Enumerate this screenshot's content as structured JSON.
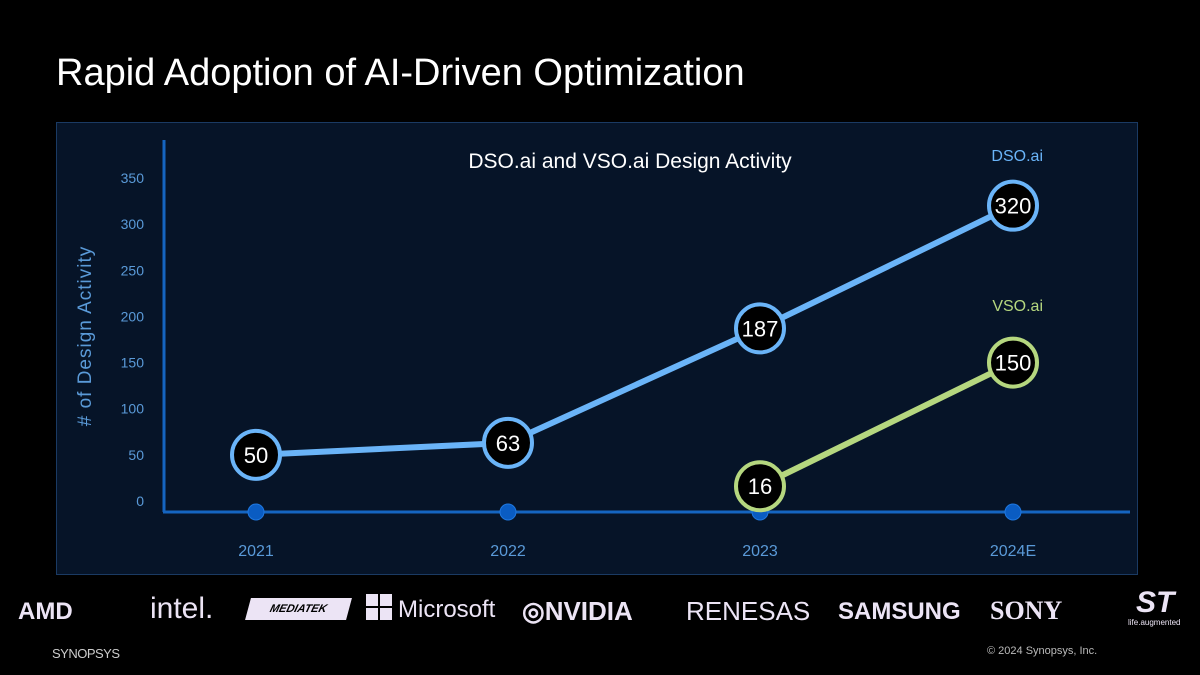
{
  "slide": {
    "title": "Rapid Adoption of AI-Driven Optimization",
    "copyright": "© 2024 Synopsys, Inc.",
    "brand": "SYNOPSYS"
  },
  "logos": [
    "AMD",
    "intel.",
    "MEDIATEK",
    "Microsoft",
    "NVIDIA",
    "RENESAS",
    "SAMSUNG",
    "SONY",
    "ST",
    "life.augmented"
  ],
  "chart_data": {
    "type": "line",
    "title": "DSO.ai and VSO.ai Design Activity",
    "ylabel": "# of Design Activity",
    "xlabel": "",
    "categories": [
      "2021",
      "2022",
      "2023",
      "2024E"
    ],
    "yticks": [
      0,
      50,
      100,
      150,
      200,
      250,
      300,
      350
    ],
    "ylim": [
      0,
      350
    ],
    "grid": false,
    "series": [
      {
        "name": "DSO.ai",
        "color": "#6ab4f8",
        "values": [
          50,
          63,
          187,
          320
        ]
      },
      {
        "name": "VSO.ai",
        "color": "#b5d77f",
        "values": [
          null,
          null,
          16,
          150
        ]
      }
    ],
    "axis_color": "#1565c0",
    "tick_color": "#5a9ad8"
  }
}
